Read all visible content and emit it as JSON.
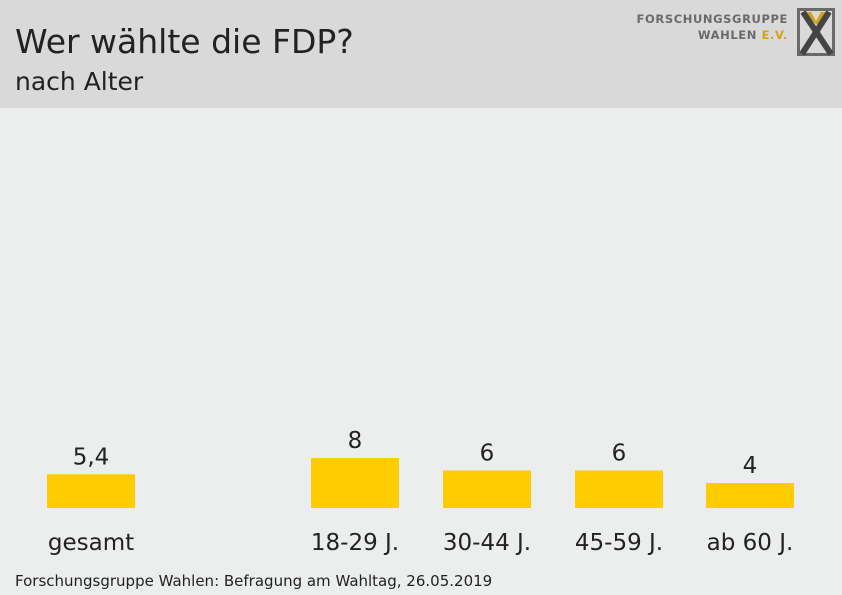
{
  "header": {
    "title": "Wer wählte die FDP?",
    "subtitle": "nach Alter",
    "logo_line1": "FORSCHUNGSGRUPPE",
    "logo_line2_main": "WAHLEN ",
    "logo_line2_accent": "E.V."
  },
  "footer": {
    "source": "Forschungsgruppe Wahlen: Befragung am Wahltag, 26.05.2019"
  },
  "colors": {
    "bar": "#ffcc00",
    "background": "#ebeeed",
    "header_background": "#d9d9d9",
    "logo_accent": "#d4a21a"
  },
  "chart_data": {
    "type": "bar",
    "title": "Wer wählte die FDP?",
    "subtitle": "nach Alter",
    "categories": [
      "gesamt",
      "18-29 J.",
      "30-44 J.",
      "45-59 J.",
      "ab 60 J."
    ],
    "values": [
      5.4,
      8,
      6,
      6,
      4
    ],
    "value_labels": [
      "5,4",
      "8",
      "6",
      "6",
      "4"
    ],
    "grid": false,
    "legend": "none"
  }
}
